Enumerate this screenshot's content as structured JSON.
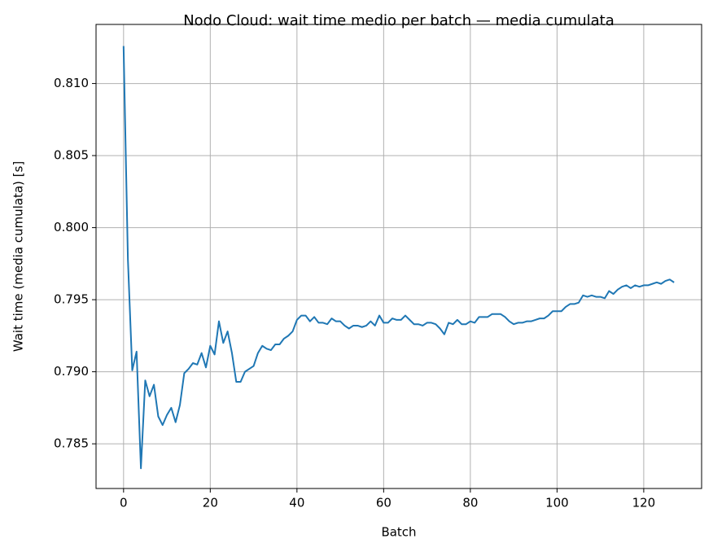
{
  "chart_data": {
    "type": "line",
    "title": "Nodo Cloud: wait time medio per batch — media cumulata",
    "x_label": "Batch",
    "y_label": "Wait time (media cumulata) [s]",
    "grid": true,
    "xlim": [
      -6.35,
      133.35
    ],
    "ylim": [
      0.7819,
      0.8141
    ],
    "xticks": [
      0,
      20,
      40,
      60,
      80,
      100,
      120
    ],
    "yticks": [
      0.785,
      {
        "value": 0.79,
        "label": "0.790"
      },
      0.795,
      {
        "value": 0.8,
        "label": "0.800"
      },
      0.805,
      {
        "value": 0.81,
        "label": "0.810"
      }
    ],
    "x": [
      0,
      1,
      2,
      3,
      4,
      5,
      6,
      7,
      8,
      9,
      10,
      11,
      12,
      13,
      14,
      15,
      16,
      17,
      18,
      19,
      20,
      21,
      22,
      23,
      24,
      25,
      26,
      27,
      28,
      29,
      30,
      31,
      32,
      33,
      34,
      35,
      36,
      37,
      38,
      39,
      40,
      41,
      42,
      43,
      44,
      45,
      46,
      47,
      48,
      49,
      50,
      51,
      52,
      53,
      54,
      55,
      56,
      57,
      58,
      59,
      60,
      61,
      62,
      63,
      64,
      65,
      66,
      67,
      68,
      69,
      70,
      71,
      72,
      73,
      74,
      75,
      76,
      77,
      78,
      79,
      80,
      81,
      82,
      83,
      84,
      85,
      86,
      87,
      88,
      89,
      90,
      91,
      92,
      93,
      94,
      95,
      96,
      97,
      98,
      99,
      100,
      101,
      102,
      103,
      104,
      105,
      106,
      107,
      108,
      109,
      110,
      111,
      112,
      113,
      114,
      115,
      116,
      117,
      118,
      119,
      120,
      121,
      122,
      123,
      124,
      125,
      126,
      127
    ],
    "series": [
      {
        "color": "#1f77b4",
        "values": [
          0.8126,
          0.7978,
          0.7901,
          0.7914,
          0.7833,
          0.7894,
          0.7883,
          0.7891,
          0.7869,
          0.7863,
          0.787,
          0.7875,
          0.7865,
          0.7877,
          0.7899,
          0.7902,
          0.7906,
          0.7905,
          0.7913,
          0.7903,
          0.7918,
          0.7912,
          0.7935,
          0.792,
          0.7928,
          0.7913,
          0.7893,
          0.7893,
          0.79,
          0.7902,
          0.7904,
          0.7913,
          0.7918,
          0.7916,
          0.7915,
          0.7919,
          0.7919,
          0.7923,
          0.7925,
          0.7928,
          0.7936,
          0.7939,
          0.7939,
          0.7935,
          0.7938,
          0.7934,
          0.7934,
          0.7933,
          0.7937,
          0.7935,
          0.7935,
          0.7932,
          0.793,
          0.7932,
          0.7932,
          0.7931,
          0.7932,
          0.7935,
          0.7932,
          0.7939,
          0.7934,
          0.7934,
          0.7937,
          0.7936,
          0.7936,
          0.7939,
          0.7936,
          0.7933,
          0.7933,
          0.7932,
          0.7934,
          0.7934,
          0.7933,
          0.793,
          0.7926,
          0.7934,
          0.7933,
          0.7936,
          0.7933,
          0.7933,
          0.7935,
          0.7934,
          0.7938,
          0.7938,
          0.7938,
          0.794,
          0.794,
          0.794,
          0.7938,
          0.7935,
          0.7933,
          0.7934,
          0.7934,
          0.7935,
          0.7935,
          0.7936,
          0.7937,
          0.7937,
          0.7939,
          0.7942,
          0.7942,
          0.7942,
          0.7945,
          0.7947,
          0.7947,
          0.7948,
          0.7953,
          0.7952,
          0.7953,
          0.7952,
          0.7952,
          0.7951,
          0.7956,
          0.7954,
          0.7957,
          0.7959,
          0.796,
          0.7958,
          0.796,
          0.7959,
          0.796,
          0.796,
          0.7961,
          0.7962,
          0.7961,
          0.7963,
          0.7964,
          0.7962
        ]
      }
    ]
  }
}
